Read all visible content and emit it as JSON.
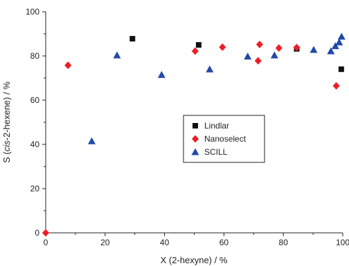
{
  "chart_data": {
    "type": "scatter",
    "xlim": [
      0,
      100
    ],
    "ylim": [
      0,
      100
    ],
    "xticks": [
      "0",
      "20",
      "40",
      "60",
      "80",
      "100"
    ],
    "yticks": [
      "0",
      "20",
      "40",
      "60",
      "80",
      "100"
    ],
    "xlabel": "X (2-hexyne) / %",
    "ylabel_parts": [
      "S (",
      "cis",
      "-2-hexene) / %"
    ],
    "grid": false,
    "legend_position": "center",
    "series": [
      {
        "name": "Lindlar",
        "marker": "square",
        "color": "#111111",
        "points": [
          [
            29.2,
            87.8
          ],
          [
            51.5,
            85.0
          ],
          [
            84.5,
            83.2
          ],
          [
            99.5,
            74.0
          ]
        ]
      },
      {
        "name": "Nanoselect",
        "marker": "diamond",
        "color": "#ee1c25",
        "points": [
          [
            0.0,
            0.0
          ],
          [
            7.5,
            75.8
          ],
          [
            50.3,
            82.2
          ],
          [
            59.5,
            84.0
          ],
          [
            71.5,
            77.8
          ],
          [
            72.0,
            85.2
          ],
          [
            78.5,
            83.6
          ],
          [
            84.5,
            83.8
          ],
          [
            97.8,
            66.5
          ]
        ]
      },
      {
        "name": "SCILL",
        "marker": "triangle",
        "color": "#2149a8",
        "points": [
          [
            15.5,
            41.5
          ],
          [
            24.0,
            80.3
          ],
          [
            39.0,
            71.5
          ],
          [
            55.2,
            74.0
          ],
          [
            68.0,
            79.8
          ],
          [
            77.0,
            80.3
          ],
          [
            90.2,
            82.8
          ],
          [
            96.0,
            82.2
          ],
          [
            97.5,
            84.5
          ],
          [
            98.8,
            86.2
          ],
          [
            99.6,
            88.8
          ]
        ]
      }
    ]
  }
}
